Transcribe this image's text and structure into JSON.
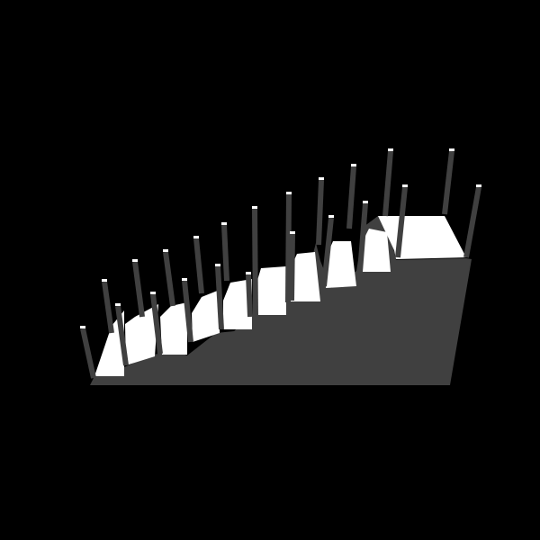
{
  "scene": {
    "name": "staircase-with-posts",
    "step_count": 9,
    "post_count": 22,
    "colors": {
      "background": "#000000",
      "stair_body": "#404040",
      "tread": "#ffffff",
      "post": "#404040",
      "post_cap": "#ffffff"
    }
  }
}
